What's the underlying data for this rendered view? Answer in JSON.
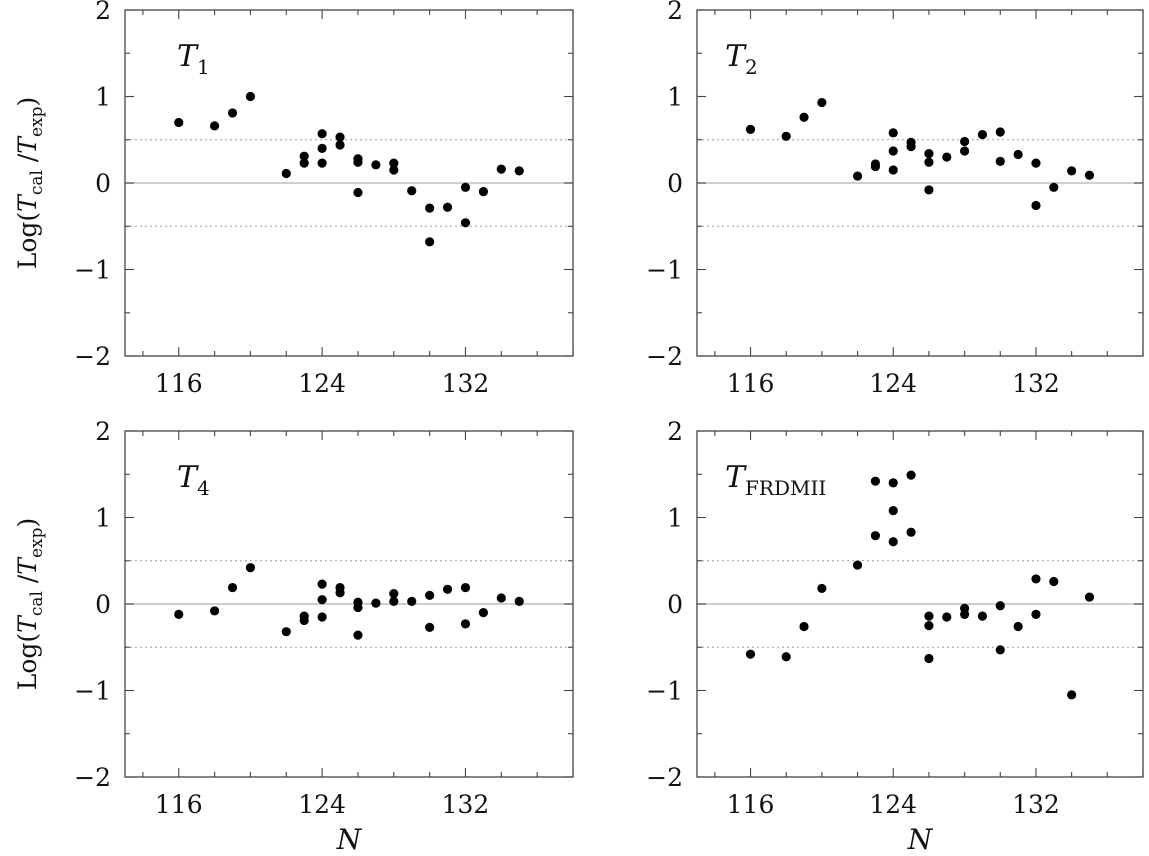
{
  "chart_data": [
    {
      "type": "scatter",
      "label_main": "T",
      "label_sub": "1",
      "ylabel": "Log(T",
      "ylabel_parts": [
        "Log(",
        "T",
        "cal",
        " /",
        "T",
        "exp",
        ")"
      ],
      "xlabel": "",
      "xlim": [
        113,
        138
      ],
      "ylim": [
        -2,
        2
      ],
      "xticks": [
        116,
        124,
        132
      ],
      "yticks": [
        2,
        1,
        0,
        -1,
        -2
      ],
      "ref_lines": [
        0.5,
        -0.5
      ],
      "points": [
        [
          116,
          0.7
        ],
        [
          118,
          0.66
        ],
        [
          119,
          0.81
        ],
        [
          120,
          1.0
        ],
        [
          122,
          0.11
        ],
        [
          123,
          0.23
        ],
        [
          123,
          0.31
        ],
        [
          124,
          0.23
        ],
        [
          124,
          0.4
        ],
        [
          124,
          0.57
        ],
        [
          125,
          0.44
        ],
        [
          125,
          0.53
        ],
        [
          126,
          0.24
        ],
        [
          126,
          0.28
        ],
        [
          126,
          -0.11
        ],
        [
          127,
          0.21
        ],
        [
          128,
          0.15
        ],
        [
          128,
          0.23
        ],
        [
          129,
          -0.09
        ],
        [
          130,
          -0.29
        ],
        [
          130,
          -0.68
        ],
        [
          131,
          -0.28
        ],
        [
          132,
          -0.05
        ],
        [
          132,
          -0.46
        ],
        [
          133,
          -0.1
        ],
        [
          134,
          0.16
        ],
        [
          135,
          0.14
        ]
      ]
    },
    {
      "type": "scatter",
      "label_main": "T",
      "label_sub": "2",
      "ylabel": "",
      "xlabel": "",
      "xlim": [
        113,
        138
      ],
      "ylim": [
        -2,
        2
      ],
      "xticks": [
        116,
        124,
        132
      ],
      "yticks": [
        2,
        1,
        0,
        -1,
        -2
      ],
      "ref_lines": [
        0.5,
        -0.5
      ],
      "points": [
        [
          116,
          0.62
        ],
        [
          118,
          0.54
        ],
        [
          119,
          0.76
        ],
        [
          120,
          0.93
        ],
        [
          122,
          0.08
        ],
        [
          123,
          0.19
        ],
        [
          123,
          0.22
        ],
        [
          124,
          0.15
        ],
        [
          124,
          0.37
        ],
        [
          124,
          0.58
        ],
        [
          125,
          0.42
        ],
        [
          125,
          0.47
        ],
        [
          126,
          0.24
        ],
        [
          126,
          0.34
        ],
        [
          126,
          -0.08
        ],
        [
          127,
          0.3
        ],
        [
          128,
          0.37
        ],
        [
          128,
          0.48
        ],
        [
          129,
          0.56
        ],
        [
          130,
          0.25
        ],
        [
          130,
          0.59
        ],
        [
          131,
          0.33
        ],
        [
          132,
          0.23
        ],
        [
          132,
          -0.26
        ],
        [
          133,
          -0.05
        ],
        [
          134,
          0.14
        ],
        [
          135,
          0.09
        ]
      ]
    },
    {
      "type": "scatter",
      "label_main": "T",
      "label_sub": "4",
      "ylabel": "Log(T",
      "ylabel_parts": [
        "Log(",
        "T",
        "cal",
        " /",
        "T",
        "exp",
        ")"
      ],
      "xlabel": "N",
      "xlim": [
        113,
        138
      ],
      "ylim": [
        -2,
        2
      ],
      "xticks": [
        116,
        124,
        132
      ],
      "yticks": [
        2,
        1,
        0,
        -1,
        -2
      ],
      "ref_lines": [
        0.5,
        -0.5
      ],
      "points": [
        [
          116,
          -0.12
        ],
        [
          118,
          -0.08
        ],
        [
          119,
          0.19
        ],
        [
          120,
          0.42
        ],
        [
          122,
          -0.32
        ],
        [
          123,
          -0.14
        ],
        [
          123,
          -0.19
        ],
        [
          124,
          -0.15
        ],
        [
          124,
          0.05
        ],
        [
          124,
          0.23
        ],
        [
          125,
          0.19
        ],
        [
          125,
          0.13
        ],
        [
          126,
          0.02
        ],
        [
          126,
          -0.04
        ],
        [
          126,
          -0.36
        ],
        [
          127,
          0.01
        ],
        [
          128,
          0.03
        ],
        [
          128,
          0.12
        ],
        [
          129,
          0.03
        ],
        [
          130,
          0.1
        ],
        [
          130,
          -0.27
        ],
        [
          131,
          0.17
        ],
        [
          132,
          0.19
        ],
        [
          132,
          -0.23
        ],
        [
          133,
          -0.1
        ],
        [
          134,
          0.07
        ],
        [
          135,
          0.03
        ]
      ]
    },
    {
      "type": "scatter",
      "label_main": "T",
      "label_sub": "FRDMII",
      "ylabel": "",
      "xlabel": "N",
      "xlim": [
        113,
        138
      ],
      "ylim": [
        -2,
        2
      ],
      "xticks": [
        116,
        124,
        132
      ],
      "yticks": [
        2,
        1,
        0,
        -1,
        -2
      ],
      "ref_lines": [
        0.5,
        -0.5
      ],
      "points": [
        [
          116,
          -0.58
        ],
        [
          118,
          -0.61
        ],
        [
          119,
          -0.26
        ],
        [
          120,
          0.18
        ],
        [
          122,
          0.45
        ],
        [
          123,
          1.42
        ],
        [
          123,
          0.79
        ],
        [
          124,
          1.4
        ],
        [
          124,
          1.08
        ],
        [
          124,
          0.72
        ],
        [
          125,
          1.49
        ],
        [
          125,
          0.83
        ],
        [
          126,
          -0.14
        ],
        [
          126,
          -0.25
        ],
        [
          126,
          -0.63
        ],
        [
          127,
          -0.15
        ],
        [
          128,
          -0.05
        ],
        [
          128,
          -0.12
        ],
        [
          129,
          -0.14
        ],
        [
          130,
          -0.02
        ],
        [
          130,
          -0.53
        ],
        [
          131,
          -0.26
        ],
        [
          132,
          0.29
        ],
        [
          132,
          -0.12
        ],
        [
          133,
          0.26
        ],
        [
          134,
          -1.05
        ],
        [
          135,
          0.08
        ]
      ]
    }
  ]
}
